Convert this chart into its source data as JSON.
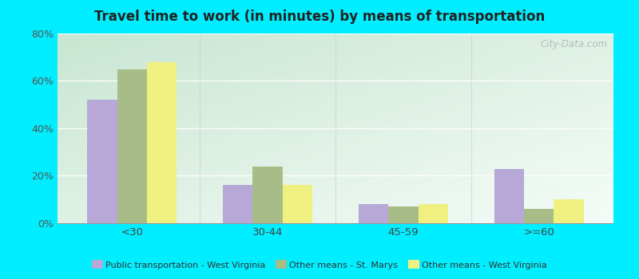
{
  "title": "Travel time to work (in minutes) by means of transportation",
  "categories": [
    "<30",
    "30-44",
    "45-59",
    ">=60"
  ],
  "series": [
    {
      "name": "Public transportation - West Virginia",
      "values": [
        52,
        16,
        8,
        23
      ],
      "color": "#b8a8d8"
    },
    {
      "name": "Other means - St. Marys",
      "values": [
        65,
        24,
        7,
        6
      ],
      "color": "#a8bc88"
    },
    {
      "name": "Other means - West Virginia",
      "values": [
        68,
        16,
        8,
        10
      ],
      "color": "#f0f080"
    }
  ],
  "ylim": [
    0,
    80
  ],
  "yticks": [
    0,
    20,
    40,
    60,
    80
  ],
  "ytick_labels": [
    "0%",
    "20%",
    "40%",
    "60%",
    "80%"
  ],
  "outer_background": "#00eeff",
  "title_color": "#222222",
  "watermark_text": "City-Data.com",
  "bar_width": 0.22,
  "legend_marker_size": 10
}
